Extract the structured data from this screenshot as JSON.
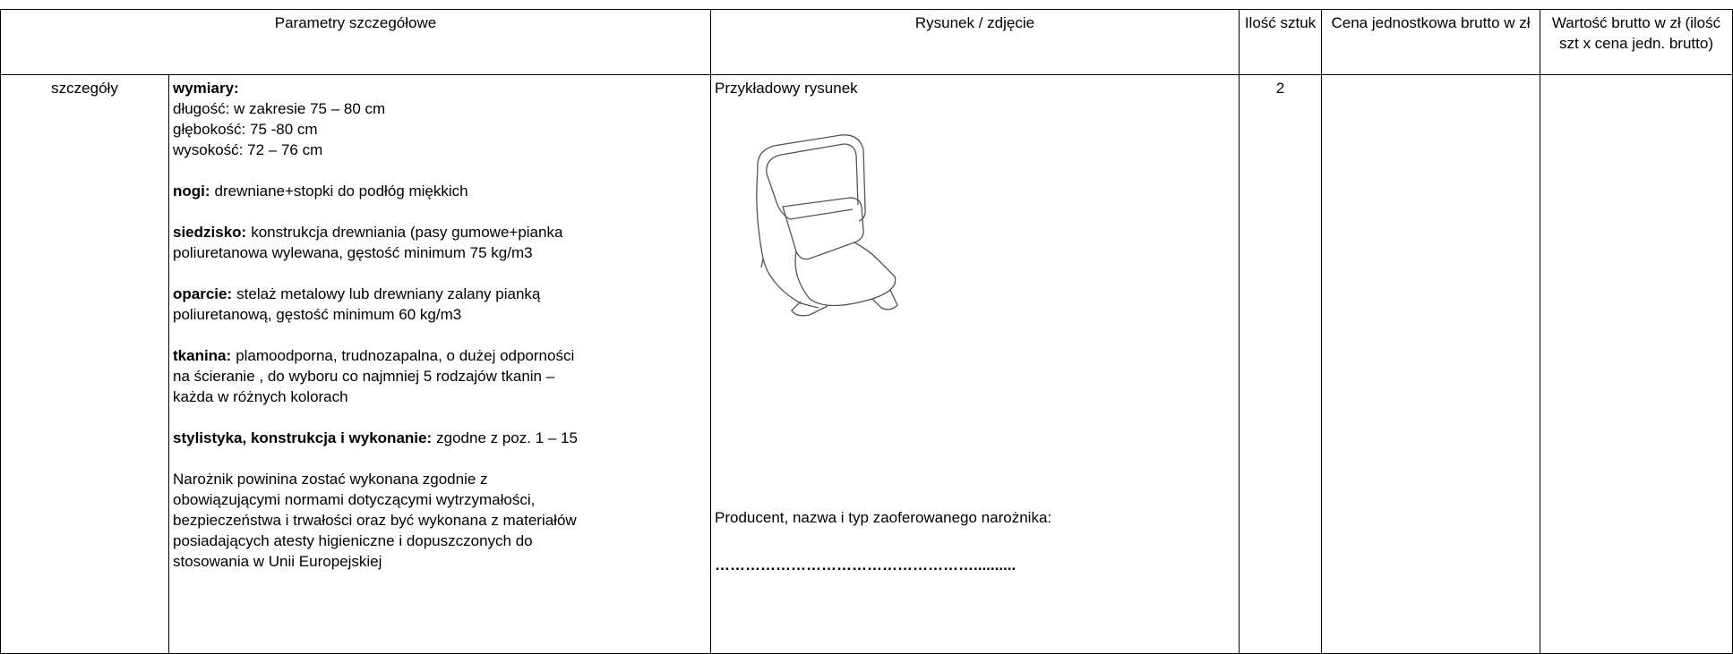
{
  "table": {
    "headers": [
      "Parametry szczegółowe",
      "Rysunek / zdjęcie",
      "Ilość sztuk",
      "Cena jednostkowa brutto w zł",
      "Wartość brutto w zł (ilość szt x cena jedn. brutto)"
    ],
    "row": {
      "label": "szczegóły",
      "spec": [
        [
          {
            "bold": "wymiary:"
          },
          {
            "text": "długość: w zakresie 75 – 80 cm"
          },
          {
            "text": "głębokość: 75 -80 cm"
          },
          {
            "text": "wysokość: 72 – 76 cm"
          }
        ],
        [
          {
            "bold": "nogi:",
            "text": "drewniane+stopki do podłóg miękkich"
          }
        ],
        [
          {
            "bold": "siedzisko:",
            "text": "konstrukcja drewniania (pasy gumowe+pianka"
          },
          {
            "text": "poliuretanowa wylewana, gęstość minimum 75 kg/m3"
          }
        ],
        [
          {
            "bold": "oparcie:",
            "text": "stelaż metalowy lub drewniany zalany pianką"
          },
          {
            "text": "poliuretanową, gęstość minimum 60 kg/m3"
          }
        ],
        [
          {
            "bold": "tkanina:",
            "text": "plamoodporna, trudnozapalna, o dużej odporności"
          },
          {
            "text": "na ścieranie , do wyboru co najmniej 5 rodzajów tkanin –"
          },
          {
            "text": "każda  w różnych kolorach"
          }
        ],
        [
          {
            "bold": "stylistyka, konstrukcja i wykonanie:",
            "text": "zgodne z poz. 1 – 15"
          }
        ],
        [
          {
            "text": "Narożnik powinina zostać wykonana zgodnie z"
          },
          {
            "text": "obowiązującymi normami dotyczącymi wytrzymałości,"
          },
          {
            "text": "bezpieczeństwa i trwałości oraz być wykonana z materiałów"
          },
          {
            "text": "posiadających atesty higieniczne i dopuszczonych do"
          },
          {
            "text": "stosowania w Unii Europejskiej"
          }
        ]
      ],
      "picture_caption": "Przykładowy rysunek",
      "producer_label": "Producent, nazwa i typ zaoferowanego narożnika:",
      "producer_blank": "……………………………………………..........",
      "quantity": "2"
    }
  }
}
